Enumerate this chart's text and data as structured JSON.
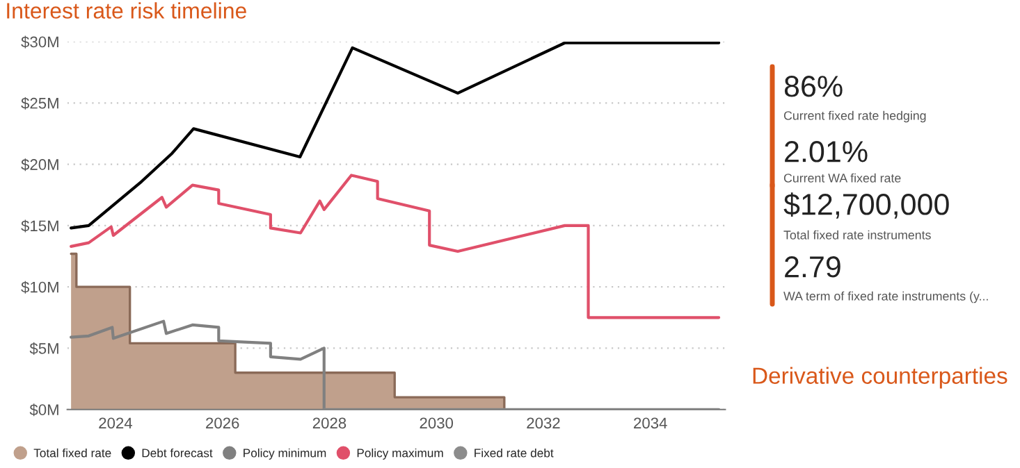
{
  "chart_data": [
    {
      "type": "line",
      "title": "Interest rate risk timeline",
      "xlim": [
        2023.1,
        2035.4
      ],
      "xticks": [
        2024,
        2026,
        2028,
        2030,
        2032,
        2034
      ],
      "ylim": [
        0,
        30
      ],
      "yticks": [
        {
          "value": 0,
          "label": "$0M"
        },
        {
          "value": 5,
          "label": "$5M"
        },
        {
          "value": 10,
          "label": "$10M"
        },
        {
          "value": 15,
          "label": "$15M"
        },
        {
          "value": 20,
          "label": "$20M"
        },
        {
          "value": 25,
          "label": "$25M"
        },
        {
          "value": 30,
          "label": "$30M"
        }
      ],
      "grid": "y",
      "legend": "bottom",
      "marker": "none",
      "line_style": "solid",
      "series": [
        {
          "name": "Total fixed rate",
          "type": "area",
          "color": "#c0a08c",
          "x": [
            2023.17,
            2023.27,
            2023.27,
            2024.27,
            2024.27,
            2026.24,
            2026.24,
            2029.22,
            2029.22,
            2031.27,
            2031.27
          ],
          "values": [
            12.7,
            12.7,
            10.0,
            10.0,
            5.4,
            5.4,
            3.0,
            3.0,
            1.0,
            1.0,
            0
          ]
        },
        {
          "name": "Debt forecast",
          "color": "#000000",
          "x": [
            2023.17,
            2023.5,
            2024.49,
            2025.06,
            2025.46,
            2027.45,
            2028.43,
            2030.4,
            2032.4,
            2035.28
          ],
          "values": [
            14.8,
            15.0,
            18.6,
            20.9,
            22.9,
            20.6,
            29.5,
            25.8,
            29.9,
            29.9
          ]
        },
        {
          "name": "Policy minimum",
          "color": "#808080",
          "x": [
            2023.17,
            2023.5,
            2023.94,
            2023.96,
            2024.9,
            2024.95,
            2025.44,
            2025.93,
            2025.93,
            2026.9,
            2026.9,
            2027.46,
            2027.9,
            2027.9
          ],
          "values": [
            5.9,
            6.0,
            6.7,
            5.8,
            7.2,
            6.2,
            6.9,
            6.7,
            5.6,
            5.4,
            4.3,
            4.1,
            5.0,
            0
          ]
        },
        {
          "name": "Policy maximum",
          "color": "#e0506a",
          "x": [
            2023.17,
            2023.5,
            2023.92,
            2023.96,
            2024.87,
            2024.95,
            2025.44,
            2025.93,
            2025.93,
            2026.9,
            2026.9,
            2027.46,
            2027.82,
            2027.9,
            2028.41,
            2028.9,
            2028.9,
            2029.87,
            2029.87,
            2030.4,
            2032.4,
            2032.84,
            2032.84,
            2035.28
          ],
          "values": [
            13.3,
            13.6,
            14.9,
            14.2,
            17.3,
            16.5,
            18.3,
            17.9,
            16.8,
            15.9,
            14.8,
            14.4,
            17.0,
            16.3,
            19.1,
            18.6,
            17.2,
            16.2,
            13.4,
            12.9,
            15.0,
            15.0,
            7.5,
            7.5
          ]
        },
        {
          "name": "Fixed rate debt",
          "color": "#8c8c8c",
          "x": [
            2027.9,
            2035.28
          ],
          "values": [
            0,
            0
          ]
        }
      ]
    },
    {
      "type": "other",
      "annotations": [
        "86%",
        "Current fixed rate hedging",
        "2.01%",
        "Current WA fixed rate",
        "$12,700,000",
        "Total fixed rate instruments",
        "2.79",
        "WA term of fixed rate instruments (y..."
      ]
    },
    {
      "type": "other",
      "title": "Derivative counterparties"
    }
  ]
}
